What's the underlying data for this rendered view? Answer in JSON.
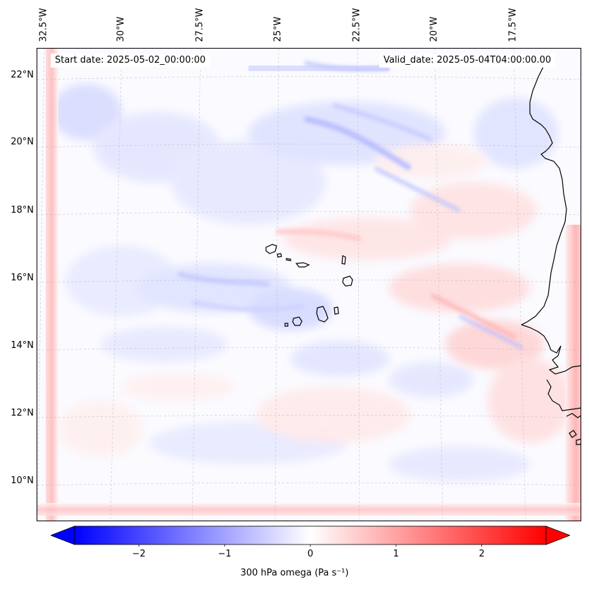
{
  "map": {
    "title_left": "Start date: 2025-05-02_00:00:00",
    "title_right": "Valid_date: 2025-05-04T04:00:00.00",
    "lon_labels": [
      "32.5°W",
      "30°W",
      "27.5°W",
      "25°W",
      "22.5°W",
      "20°W",
      "17.5°W"
    ],
    "lat_labels": [
      "22°N",
      "20°N",
      "18°N",
      "16°N",
      "14°N",
      "12°N",
      "10°N"
    ],
    "extent": {
      "lon_min": -33.0,
      "lon_max": -15.5,
      "lat_min": 8.8,
      "lat_max": 22.8
    },
    "colors": {
      "negative": "#0000ff",
      "neutral": "#ffffff",
      "positive": "#ff0000",
      "coast": "#000000",
      "grid": "#b0b0b0"
    },
    "variable": "300 hPa omega (Pa s⁻¹)"
  },
  "colorbar": {
    "min": -2.75,
    "max": 2.75,
    "ticks": [
      "−2",
      "−1",
      "0",
      "1",
      "2"
    ],
    "tick_values": [
      -2,
      -1,
      0,
      1,
      2
    ],
    "label": "300 hPa omega (Pa s⁻¹)"
  }
}
